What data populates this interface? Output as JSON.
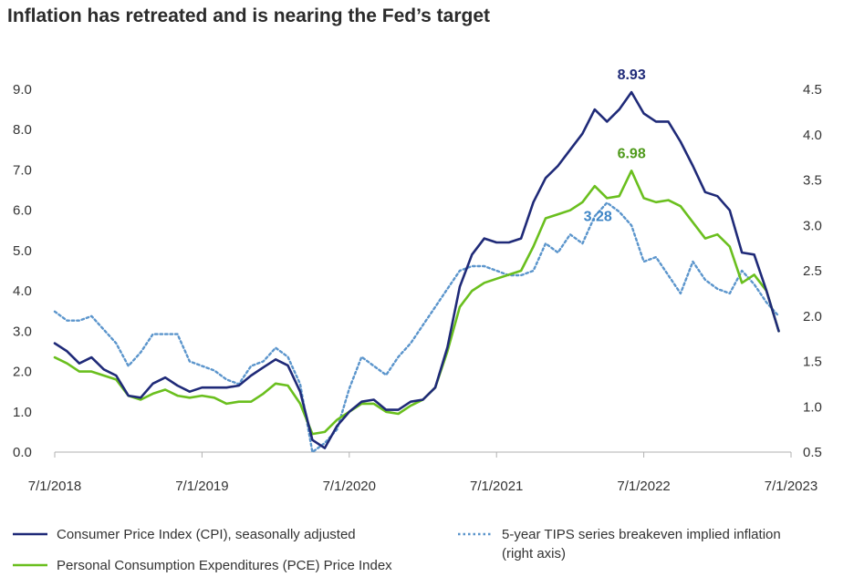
{
  "title": "Inflation has retreated and is nearing the Fed’s target",
  "chart_data": {
    "type": "line",
    "x_ticks": [
      "7/1/2018",
      "7/1/2019",
      "7/1/2020",
      "7/1/2021",
      "7/1/2022",
      "7/1/2023"
    ],
    "x_range": [
      "2018-07",
      "2023-07"
    ],
    "y_left": {
      "ticks": [
        "0.0",
        "1.0",
        "2.0",
        "3.0",
        "4.0",
        "5.0",
        "6.0",
        "7.0",
        "8.0",
        "9.0"
      ],
      "min": 0,
      "max": 9
    },
    "y_right": {
      "ticks": [
        "0.5",
        "1.0",
        "1.5",
        "2.0",
        "2.5",
        "3.0",
        "3.5",
        "4.0",
        "4.5"
      ],
      "min": 0.5,
      "max": 4.5
    },
    "grid": false,
    "legend_position": "bottom",
    "colors": {
      "cpi": "#1f2a78",
      "pce": "#6abf1e",
      "tips": "#5b95cc"
    },
    "series": [
      {
        "name": "Consumer Price Index (CPI), seasonally adjusted",
        "axis": "left",
        "start": "2018-07",
        "values": [
          2.7,
          2.5,
          2.2,
          2.35,
          2.05,
          1.9,
          1.4,
          1.35,
          1.7,
          1.85,
          1.65,
          1.5,
          1.6,
          1.6,
          1.6,
          1.65,
          1.9,
          2.1,
          2.3,
          2.15,
          1.5,
          0.3,
          0.1,
          0.65,
          1.0,
          1.25,
          1.3,
          1.05,
          1.05,
          1.25,
          1.3,
          1.6,
          2.6,
          4.1,
          4.9,
          5.3,
          5.2,
          5.2,
          5.3,
          6.2,
          6.8,
          7.1,
          7.5,
          7.9,
          8.5,
          8.2,
          8.5,
          8.93,
          8.4,
          8.2,
          8.2,
          7.7,
          7.1,
          6.45,
          6.35,
          6.0,
          4.95,
          4.9,
          4.0,
          3.0
        ]
      },
      {
        "name": "Personal Consumption Expenditures (PCE) Price Index",
        "axis": "left",
        "start": "2018-07",
        "values": [
          2.35,
          2.2,
          2.0,
          2.0,
          1.9,
          1.8,
          1.4,
          1.3,
          1.45,
          1.55,
          1.4,
          1.35,
          1.4,
          1.35,
          1.2,
          1.25,
          1.25,
          1.45,
          1.7,
          1.65,
          1.2,
          0.45,
          0.5,
          0.8,
          1.0,
          1.2,
          1.2,
          1.0,
          0.95,
          1.15,
          1.3,
          1.6,
          2.5,
          3.6,
          4.0,
          4.2,
          4.3,
          4.4,
          4.5,
          5.1,
          5.8,
          5.9,
          6.0,
          6.2,
          6.6,
          6.3,
          6.35,
          6.98,
          6.3,
          6.2,
          6.25,
          6.1,
          5.7,
          5.3,
          5.4,
          5.1,
          4.2,
          4.4,
          4.0,
          3.0
        ]
      },
      {
        "name": "5-year TIPS series breakeven implied inflation (right axis)",
        "axis": "right",
        "start": "2018-07",
        "values": [
          2.05,
          1.95,
          1.95,
          2.0,
          1.85,
          1.7,
          1.45,
          1.6,
          1.8,
          1.8,
          1.8,
          1.5,
          1.45,
          1.4,
          1.3,
          1.25,
          1.45,
          1.5,
          1.65,
          1.55,
          1.25,
          0.5,
          0.6,
          0.75,
          1.2,
          1.55,
          1.45,
          1.35,
          1.55,
          1.7,
          1.9,
          2.1,
          2.3,
          2.5,
          2.55,
          2.55,
          2.5,
          2.45,
          2.45,
          2.5,
          2.8,
          2.7,
          2.9,
          2.8,
          3.1,
          3.25,
          3.15,
          3.0,
          2.6,
          2.65,
          2.45,
          2.25,
          2.6,
          2.4,
          2.3,
          2.25,
          2.5,
          2.35,
          2.15,
          2.0
        ]
      }
    ],
    "annotations": [
      {
        "text": "8.93",
        "series": "Consumer Price Index (CPI), seasonally adjusted",
        "color": "#1f2a78"
      },
      {
        "text": "6.98",
        "series": "Personal Consumption Expenditures (PCE) Price Index",
        "color": "#4f9a1b"
      },
      {
        "text": "3.28",
        "series": "5-year TIPS series breakeven implied inflation (right axis)",
        "color": "#3f86c6"
      }
    ]
  }
}
